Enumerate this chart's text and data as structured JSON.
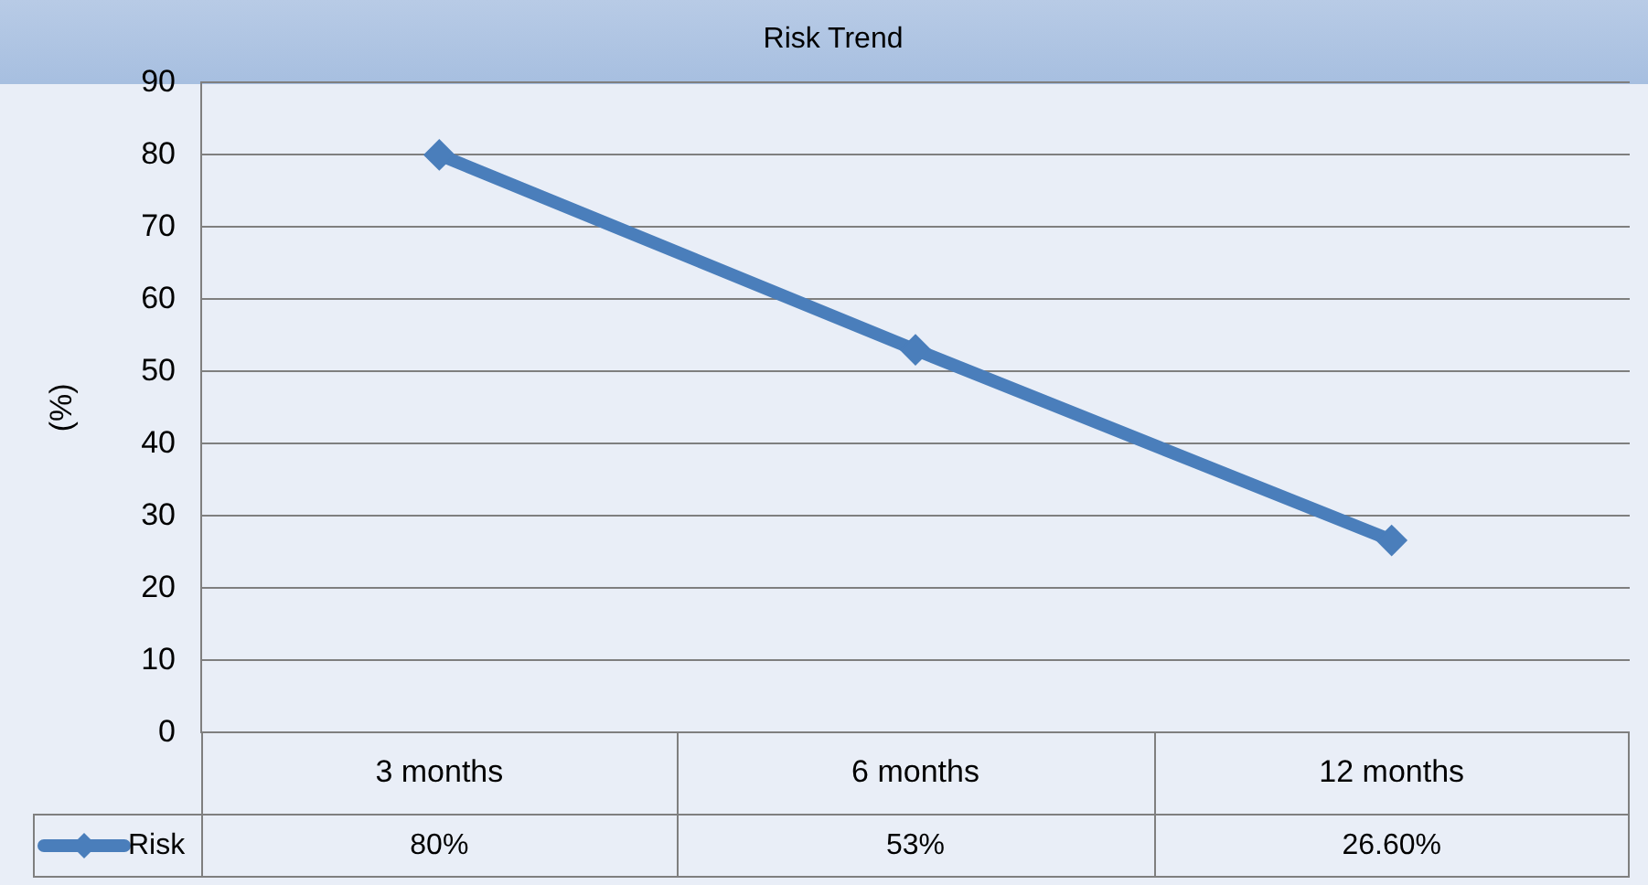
{
  "chart_data": {
    "type": "line",
    "title": "Risk Trend",
    "ylabel": "(%)",
    "categories": [
      "3 months",
      "6 months",
      "12 months"
    ],
    "series": [
      {
        "name": "Risk",
        "color": "#4a7ebb",
        "values": [
          80,
          53,
          26.6
        ],
        "value_labels": [
          "80%",
          "53%",
          "26.60%"
        ]
      }
    ],
    "ylim": [
      0,
      90
    ],
    "yticks": [
      0,
      10,
      20,
      30,
      40,
      50,
      60,
      70,
      80,
      90
    ],
    "grid": "y",
    "legend": "bottom left",
    "marker": "diamond",
    "line_style": "solid"
  }
}
